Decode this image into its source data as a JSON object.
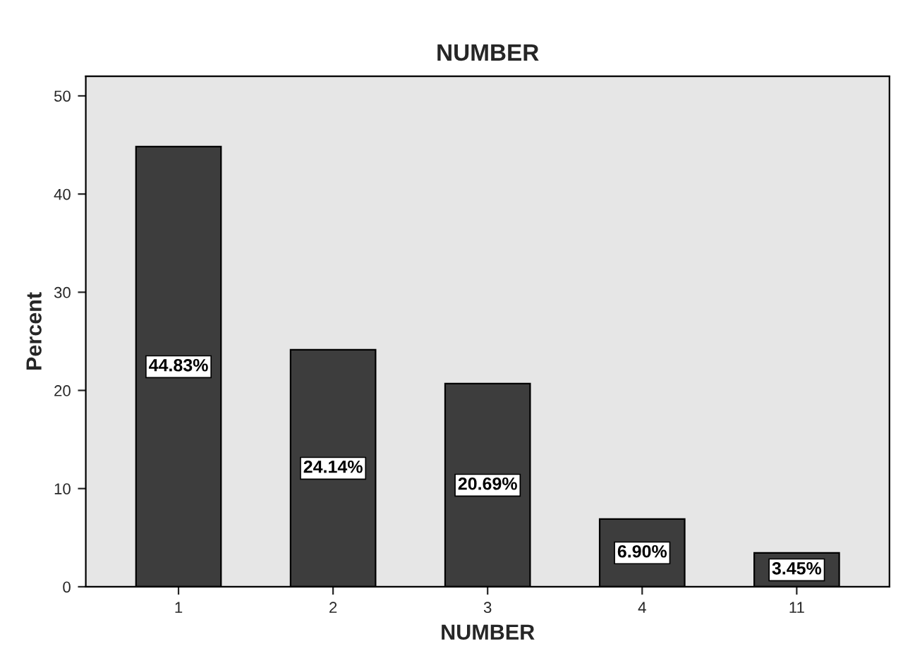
{
  "chart_data": {
    "type": "bar",
    "title": "NUMBER",
    "xlabel": "NUMBER",
    "ylabel": "Percent",
    "categories": [
      "1",
      "2",
      "3",
      "4",
      "11"
    ],
    "values": [
      44.83,
      24.14,
      20.69,
      6.9,
      3.45
    ],
    "value_labels": [
      "44.83%",
      "24.14%",
      "20.69%",
      "6.90%",
      "3.45%"
    ],
    "color": "#3d3d3d",
    "ylim": [
      0,
      52
    ],
    "yticks": [
      0,
      10,
      20,
      30,
      40,
      50
    ],
    "grid": false
  }
}
